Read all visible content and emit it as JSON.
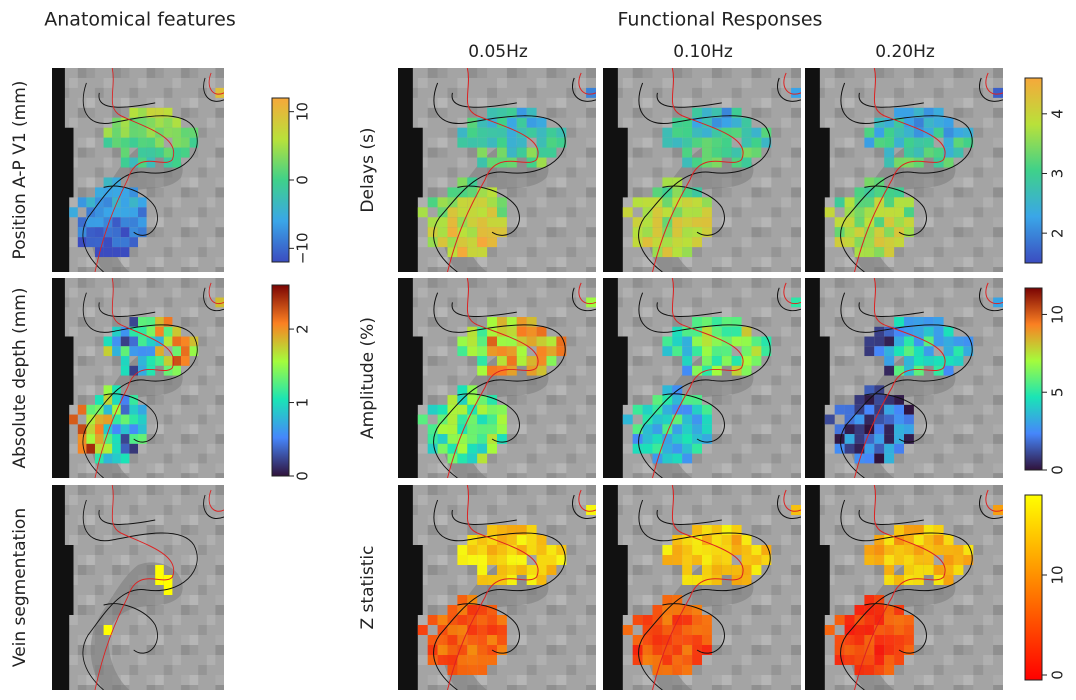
{
  "anatomical": {
    "title": "Anatomical features",
    "rows": [
      {
        "label": "Position A-P V1 (mm)",
        "colorbar": {
          "lim": [
            -12,
            12
          ],
          "ticks": [
            {
              "value": -10,
              "label": "−10"
            },
            0,
            10
          ]
        }
      },
      {
        "label": "Absolute depth (mm)",
        "colorbar": {
          "lim": [
            0,
            2.6
          ],
          "ticks": [
            0,
            1,
            2
          ]
        }
      },
      {
        "label": "Vein segmentation"
      }
    ]
  },
  "functional": {
    "title": "Functional Responses",
    "columns": [
      "0.05Hz",
      "0.10Hz",
      "0.20Hz"
    ],
    "rows": [
      {
        "label": "Delays (s)",
        "colorbar": {
          "lim": [
            1.5,
            4.6
          ],
          "ticks": [
            2,
            3,
            4
          ]
        }
      },
      {
        "label": "Amplitude (%)",
        "colorbar": {
          "lim": [
            0,
            11.7
          ],
          "ticks": [
            0,
            5,
            10
          ]
        }
      },
      {
        "label": "Z statistic",
        "colorbar": {
          "lim": [
            -0.5,
            18
          ],
          "ticks": [
            0,
            10
          ]
        }
      }
    ]
  }
}
